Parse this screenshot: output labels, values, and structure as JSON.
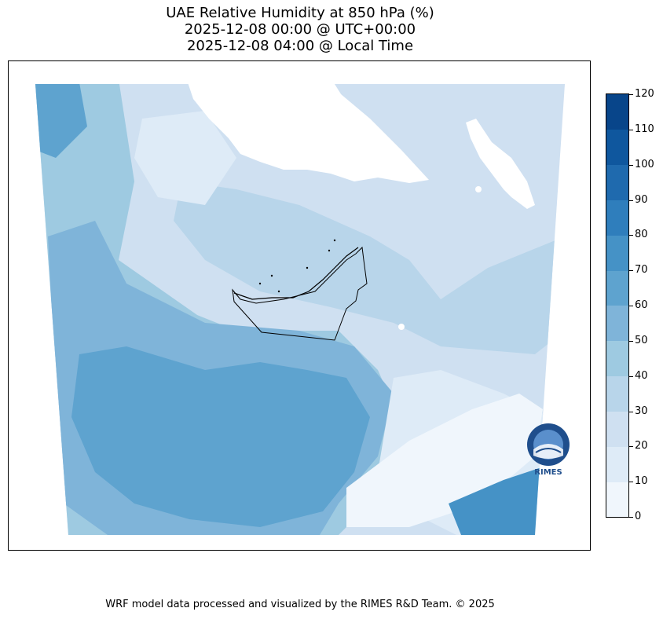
{
  "title": {
    "line1": "UAE Relative Humidity at 850 hPa (%)",
    "line2": "2025-12-08 00:00 @ UTC+00:00",
    "line3": "2025-12-08 04:00 @ Local Time"
  },
  "colorbar": {
    "ticks": [
      "0",
      "10",
      "20",
      "30",
      "40",
      "50",
      "60",
      "70",
      "80",
      "90",
      "100",
      "110",
      "120"
    ],
    "colors": [
      "#f0f6fc",
      "#deebf7",
      "#cfe0f1",
      "#b8d5ea",
      "#9ecae1",
      "#7fb4d9",
      "#5ea3cf",
      "#4592c6",
      "#2f7ebc",
      "#1f6aae",
      "#0f579e",
      "#08458a",
      "#08306b"
    ]
  },
  "logo": {
    "text": "RIMES"
  },
  "footer": {
    "credit": "WRF model data processed and visualized by the RIMES R&D Team. © 2025"
  }
}
